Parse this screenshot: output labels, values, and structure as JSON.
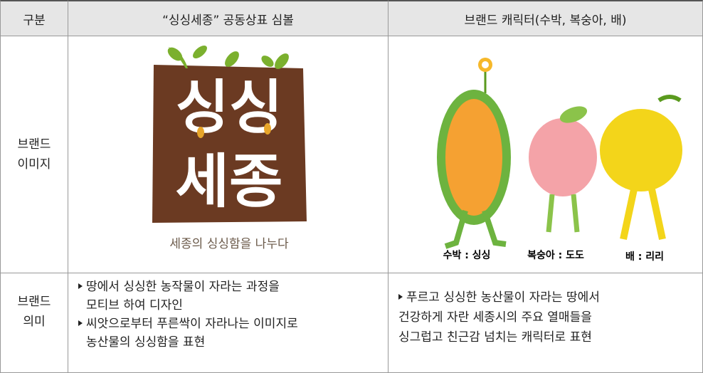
{
  "table": {
    "header": [
      "구분",
      "“싱싱세종” 공동상표 심볼",
      "브랜드 캐릭터(수박, 복숭아, 배)"
    ],
    "rows": [
      {
        "label": [
          "브랜드",
          "이미지"
        ],
        "logo": {
          "lines": [
            "싱싱",
            "세종"
          ],
          "slogan": "세종의 싱싱함을 나누다"
        },
        "characters": [
          "수박 : 싱싱",
          "복숭아 : 도도",
          "배 : 리리"
        ]
      },
      {
        "label": [
          "브랜드",
          "의미"
        ],
        "symbol_text": [
          [
            "땅에서 싱싱한 농작물이 자라는 과정을",
            "모티브 하여 디자인"
          ],
          [
            "씨앗으로부터 푸른싹이 자라나는 이미지로",
            "농산물의 싱싱함을 표현"
          ]
        ],
        "character_text": [
          [
            "푸르고 싱싱한 농산물이 자라는 땅에서",
            "건강하게 자란 세종시의 주요 열매들을",
            "싱그럽고 친근감 넘치는 캐릭터로 표현"
          ]
        ]
      }
    ]
  }
}
